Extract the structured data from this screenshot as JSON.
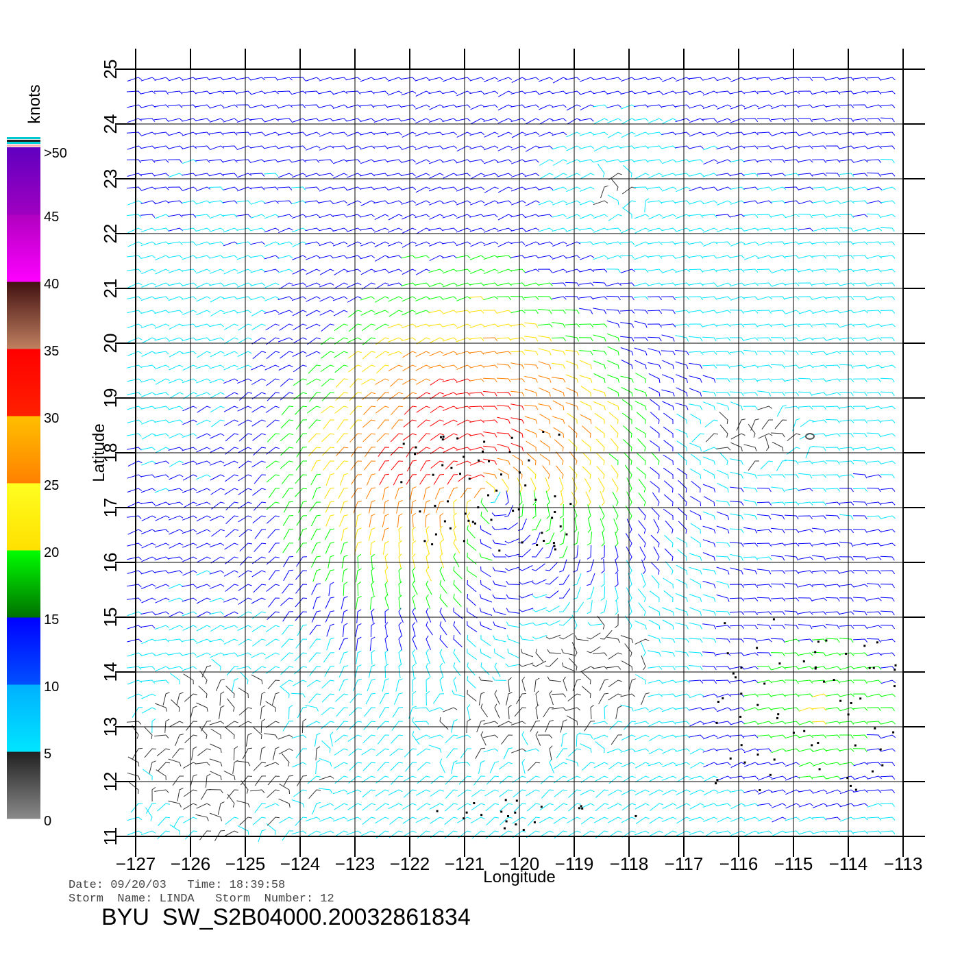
{
  "chart_data": {
    "type": "wind-vector-map",
    "x_axis": {
      "label": "Longitude",
      "range": [
        -127,
        -113
      ],
      "ticks": [
        -127,
        -126,
        -125,
        -124,
        -123,
        -122,
        -121,
        -120,
        -119,
        -118,
        -117,
        -116,
        -115,
        -114,
        -113
      ]
    },
    "y_axis": {
      "label": "Latitude",
      "range": [
        11,
        25
      ],
      "ticks": [
        11,
        12,
        13,
        14,
        15,
        16,
        17,
        18,
        19,
        20,
        21,
        22,
        23,
        24,
        25
      ]
    },
    "grid": true,
    "storm_center": {
      "lon": -120.6,
      "lat": 17.3
    },
    "colorbar": {
      "title": "knots",
      "top_label": ">50",
      "labels": [
        "0",
        "5",
        "10",
        "15",
        "20",
        "25",
        "30",
        "35",
        "40",
        "45",
        ">50"
      ],
      "colors": [
        "#8a8a8a",
        "#00e5ff",
        "#0000ff",
        "#00ff00",
        "#ffe000",
        "#ff8000",
        "#ff0000",
        "#b07050",
        "#ff00ff",
        "#6000c0"
      ]
    },
    "info": {
      "date_line": "Date: 09/20/03   Time: 18:39:58",
      "storm_line": "Storm  Name: LINDA   Storm  Number: 12",
      "product": "BYU  SW_S2B04000.20032861834"
    }
  }
}
